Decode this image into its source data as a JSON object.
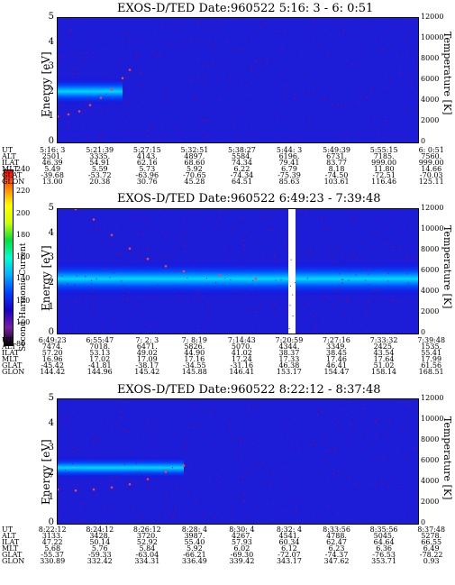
{
  "colorbar": {
    "label": "Second Harmonic Current",
    "ticks": [
      "240",
      "220",
      "200",
      "180",
      "160",
      "140",
      "120",
      "100",
      "80"
    ],
    "colors": [
      "#000000",
      "#7a1fa2",
      "#1b00c8",
      "#0040ff",
      "#00b0ff",
      "#00ffd0",
      "#00e040",
      "#d0ff00",
      "#ffff00",
      "#ff8000",
      "#ff0000"
    ]
  },
  "panels": [
    {
      "title": "EXOS-D/TED   Date:960522  5:16: 3 - 6: 0:51",
      "ylabel": "Energy [eV]",
      "ylabel_right": "Temperature [K]",
      "yticks": [
        "0",
        "1",
        "2",
        "3",
        "4",
        "5"
      ],
      "yticks_right": [
        "0",
        "2000",
        "4000",
        "6000",
        "8000",
        "10000",
        "12000"
      ],
      "labels": [
        "UT",
        "ALT",
        "ILAT",
        "MLT",
        "GLAT",
        "GLON"
      ],
      "columns": [
        [
          "5:16: 3",
          "2501.",
          "46.39",
          "5.49",
          "-39.68",
          "13.00"
        ],
        [
          "5:21:39",
          "3335.",
          "54.91",
          "5.59",
          "-53.72",
          "20.38"
        ],
        [
          "5:27:15",
          "4143.",
          "62.16",
          "5.73",
          "-63.96",
          "30.76"
        ],
        [
          "5:32:51",
          "4897.",
          "68.60",
          "5.92",
          "-70.65",
          "45.28"
        ],
        [
          "5:38:27",
          "5584.",
          "74.34",
          "6.22",
          "-74.34",
          "64.51"
        ],
        [
          "5:44: 3",
          "6196.",
          "79.41",
          "6.79",
          "-75.39",
          "85.63"
        ],
        [
          "5:49:39",
          "6731.",
          "83.77",
          "8.18",
          "-74.50",
          "103.61"
        ],
        [
          "5:55:15",
          "7185.",
          "999.00",
          "11.80",
          "-72.51",
          "116.46"
        ],
        [
          "6: 0:51",
          "7560.",
          "999.00",
          "14.66",
          "-70.03",
          "125.11"
        ]
      ]
    },
    {
      "title": "EXOS-D/TED   Date:960522  6:49:23 - 7:39:48",
      "ylabel": "Energy [eV]",
      "ylabel_right": "Temperature [K]",
      "yticks": [
        "0",
        "1",
        "2",
        "3",
        "4",
        "5"
      ],
      "yticks_right": [
        "0",
        "2000",
        "4000",
        "6000",
        "8000",
        "10000",
        "12000"
      ],
      "labels": [
        "UT",
        "ALT",
        "ILAT",
        "MLT",
        "GLAT",
        "GLON"
      ],
      "columns": [
        [
          "6:49:23",
          "7474.",
          "57.20",
          "16.96",
          "-45.42",
          "144.42"
        ],
        [
          "6:55:47",
          "7018.",
          "53.13",
          "17.02",
          "-41.81",
          "144.96"
        ],
        [
          "7: 2: 3",
          "6471.",
          "49.02",
          "17.09",
          "-38.17",
          "145.42"
        ],
        [
          "7: 8:19",
          "5826.",
          "44.90",
          "17.16",
          "-34.55",
          "145.88"
        ],
        [
          "7:14:43",
          "5070.",
          "41.02",
          "17.24",
          "-31.16",
          "146.41"
        ],
        [
          "7:20:59",
          "4344.",
          "38.37",
          "17.33",
          "46.38",
          "153.17"
        ],
        [
          "7:27:16",
          "3349.",
          "38.45",
          "17.46",
          "46.41",
          "154.47"
        ],
        [
          "7:33:32",
          "2425.",
          "43.54",
          "17.64",
          "51.02",
          "158.14"
        ],
        [
          "7:39:48",
          "1535.",
          "55.41",
          "17.99",
          "61.56",
          "168.51"
        ]
      ]
    },
    {
      "title": "EXOS-D/TED   Date:960522  8:22:12 - 8:37:48",
      "ylabel": "Energy [eV]",
      "ylabel_right": "Temperature [K]",
      "yticks": [
        "0",
        "1",
        "2",
        "3",
        "4",
        "5"
      ],
      "yticks_right": [
        "0",
        "2000",
        "4000",
        "6000",
        "8000",
        "10000",
        "12000"
      ],
      "labels": [
        "UT",
        "ALT",
        "ILAT",
        "MLT",
        "GLAT",
        "GLON"
      ],
      "columns": [
        [
          "8:22:12",
          "3133.",
          "47.22",
          "5.68",
          "-55.37",
          "330.89"
        ],
        [
          "8:24:12",
          "3428.",
          "50.14",
          "5.76",
          "-59.33",
          "332.42"
        ],
        [
          "8:26:12",
          "3720.",
          "52.92",
          "5.84",
          "-63.04",
          "334.31"
        ],
        [
          "8:28: 4",
          "3987.",
          "55.40",
          "5.92",
          "-66.21",
          "336.49"
        ],
        [
          "8:30: 4",
          "4267.",
          "57.93",
          "6.02",
          "-69.30",
          "339.42"
        ],
        [
          "8:32: 4",
          "4541.",
          "60.34",
          "6.12",
          "-72.07",
          "343.17"
        ],
        [
          "8:33:56",
          "4788.",
          "62.47",
          "6.23",
          "-74.37",
          "347.62"
        ],
        [
          "8:35:56",
          "5045.",
          "64.64",
          "6.36",
          "-76.53",
          "353.71"
        ],
        [
          "8:37:48",
          "5278.",
          "66.55",
          "6.49",
          "-78.22",
          "0.93"
        ]
      ]
    }
  ],
  "chart_data": [
    {
      "type": "heatmap",
      "title": "EXOS-D/TED   Date:960522  5:16: 3 - 6: 0:51",
      "ylabel": "Energy [eV]",
      "ylabel_right": "Temperature [K]",
      "ylim": [
        0,
        5
      ],
      "ylim_right": [
        0,
        12000
      ],
      "x_ticks": [
        "5:16: 3",
        "5:21:39",
        "5:27:15",
        "5:32:51",
        "5:38:27",
        "5:44: 3",
        "5:49:39",
        "5:55:15",
        "6: 0:51"
      ],
      "band": {
        "x_start": 0.0,
        "x_end": 0.18,
        "energy_center": 2.05,
        "energy_half_width": 0.55
      },
      "temperature_trace": [
        [
          0.0,
          2500
        ],
        [
          0.03,
          2700
        ],
        [
          0.06,
          3000
        ],
        [
          0.09,
          3600
        ],
        [
          0.12,
          4300
        ],
        [
          0.15,
          5100
        ],
        [
          0.18,
          6200
        ],
        [
          0.2,
          7000
        ]
      ]
    },
    {
      "type": "heatmap",
      "title": "EXOS-D/TED   Date:960522  6:49:23 - 7:39:48",
      "ylabel": "Energy [eV]",
      "ylabel_right": "Temperature [K]",
      "ylim": [
        0,
        5
      ],
      "ylim_right": [
        0,
        12000
      ],
      "x_ticks": [
        "6:49:23",
        "6:55:47",
        "7: 2: 3",
        "7: 8:19",
        "7:14:43",
        "7:20:59",
        "7:27:16",
        "7:33:32",
        "7:39:48"
      ],
      "band": {
        "x_start": 0.0,
        "x_end": 1.0,
        "energy_center": 2.2,
        "energy_half_width": 0.7
      },
      "data_gap": [
        0.64,
        0.66
      ],
      "temperature_trace": [
        [
          0.05,
          12000
        ],
        [
          0.1,
          11000
        ],
        [
          0.15,
          9500
        ],
        [
          0.2,
          8200
        ],
        [
          0.25,
          7200
        ],
        [
          0.3,
          6500
        ],
        [
          0.35,
          6000
        ],
        [
          0.45,
          5600
        ],
        [
          0.55,
          5300
        ]
      ]
    },
    {
      "type": "heatmap",
      "title": "EXOS-D/TED   Date:960522  8:22:12 - 8:37:48",
      "ylabel": "Energy [eV]",
      "ylabel_right": "Temperature [K]",
      "ylim": [
        0,
        5
      ],
      "ylim_right": [
        0,
        12000
      ],
      "x_ticks": [
        "8:22:12",
        "8:24:12",
        "8:26:12",
        "8:28: 4",
        "8:30: 4",
        "8:32: 4",
        "8:33:56",
        "8:35:56",
        "8:37:48"
      ],
      "band": {
        "x_start": 0.0,
        "x_end": 0.35,
        "energy_center": 2.25,
        "energy_half_width": 0.45
      },
      "temperature_trace": [
        [
          0.0,
          3300
        ],
        [
          0.05,
          3200
        ],
        [
          0.1,
          3300
        ],
        [
          0.15,
          3500
        ],
        [
          0.2,
          3800
        ],
        [
          0.25,
          4300
        ],
        [
          0.3,
          5000
        ],
        [
          0.35,
          5600
        ]
      ]
    }
  ]
}
